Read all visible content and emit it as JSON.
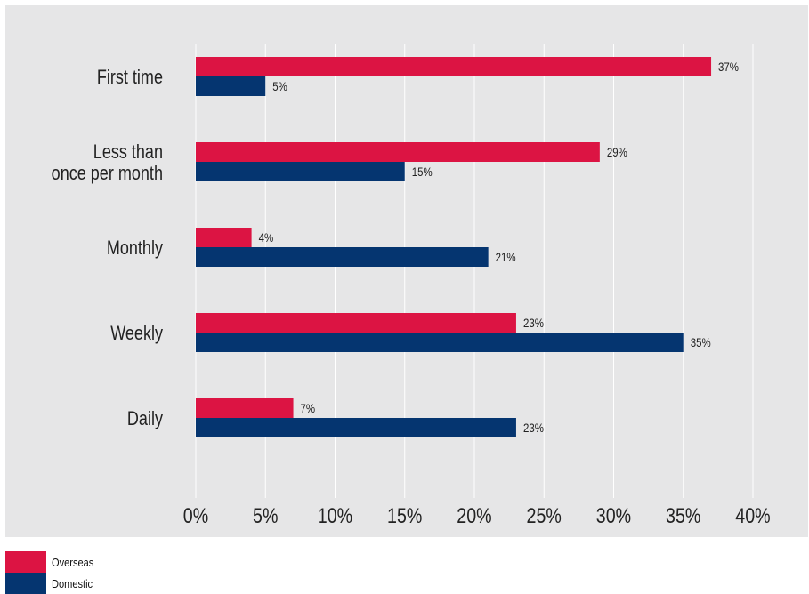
{
  "chart_data": {
    "type": "bar",
    "orientation": "horizontal",
    "categories": [
      [
        "First time"
      ],
      [
        "Less than",
        "once per month"
      ],
      [
        "Monthly"
      ],
      [
        "Weekly"
      ],
      [
        "Daily"
      ]
    ],
    "series": [
      {
        "name": "Overseas",
        "color": "#dc1443",
        "values": [
          37,
          29,
          4,
          23,
          7
        ],
        "labels": [
          "37%",
          "29%",
          "4%",
          "23%",
          "7%"
        ]
      },
      {
        "name": "Domestic",
        "color": "#053570",
        "values": [
          5,
          15,
          21,
          35,
          23
        ],
        "labels": [
          "5%",
          "15%",
          "21%",
          "35%",
          "23%"
        ]
      }
    ],
    "xlim": [
      0,
      40
    ],
    "xticks": [
      "0%",
      "5%",
      "10%",
      "15%",
      "20%",
      "25%",
      "30%",
      "35%",
      "40%"
    ],
    "grid": "vertical",
    "legend_position": "bottom-left"
  },
  "legend": {
    "overseas_label": "Overseas",
    "domestic_label": "Domestic",
    "overseas_color": "#dc1443",
    "domestic_color": "#053570"
  }
}
